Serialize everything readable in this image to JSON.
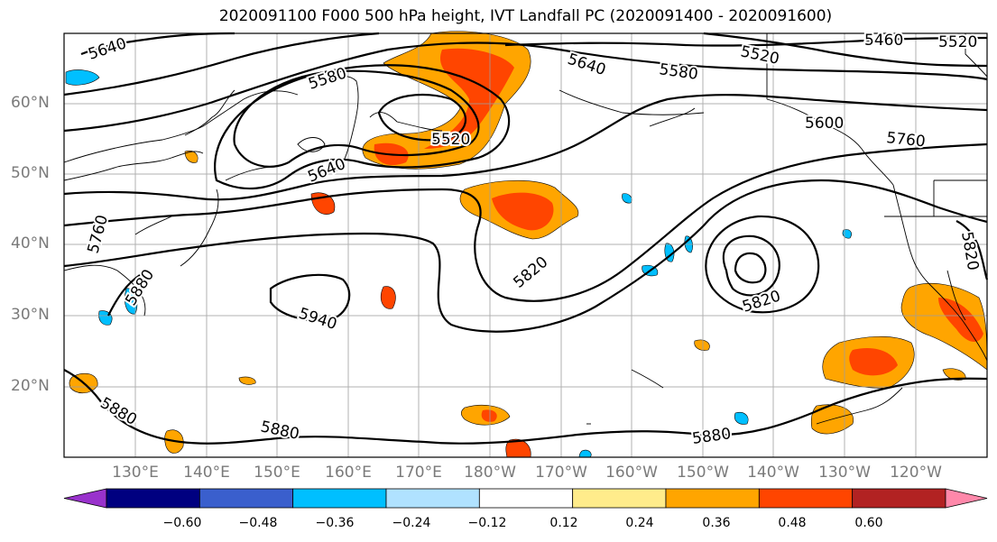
{
  "title": "2020091100 F000 500 hPa height, IVT Landfall PC (2020091400 - 2020091600)",
  "map": {
    "lat_labels": [
      "60°N",
      "50°N",
      "40°N",
      "30°N",
      "20°N"
    ],
    "lon_labels": [
      "130°E",
      "140°E",
      "150°E",
      "160°E",
      "170°E",
      "180°W",
      "170°W",
      "160°W",
      "150°W",
      "140°W",
      "130°W",
      "120°W"
    ],
    "contour_labels": [
      "5640",
      "5580",
      "5520",
      "5640",
      "5580",
      "5520",
      "5460",
      "5640",
      "5520",
      "5600",
      "5760",
      "5820",
      "5820",
      "5940",
      "5880",
      "5880",
      "5880",
      "5880",
      "5760",
      "5820"
    ]
  },
  "colorbar": {
    "ticks": [
      "−0.60",
      "−0.48",
      "−0.36",
      "−0.24",
      "−0.12",
      "0.12",
      "0.24",
      "0.36",
      "0.48",
      "0.60"
    ],
    "colors": [
      "#9932cc",
      "#000080",
      "#3a5fcd",
      "#00bfff",
      "#b0e2ff",
      "#ffffff",
      "#ffec8b",
      "#ffa500",
      "#ff4500",
      "#b22222",
      "#ff88aa"
    ]
  }
}
